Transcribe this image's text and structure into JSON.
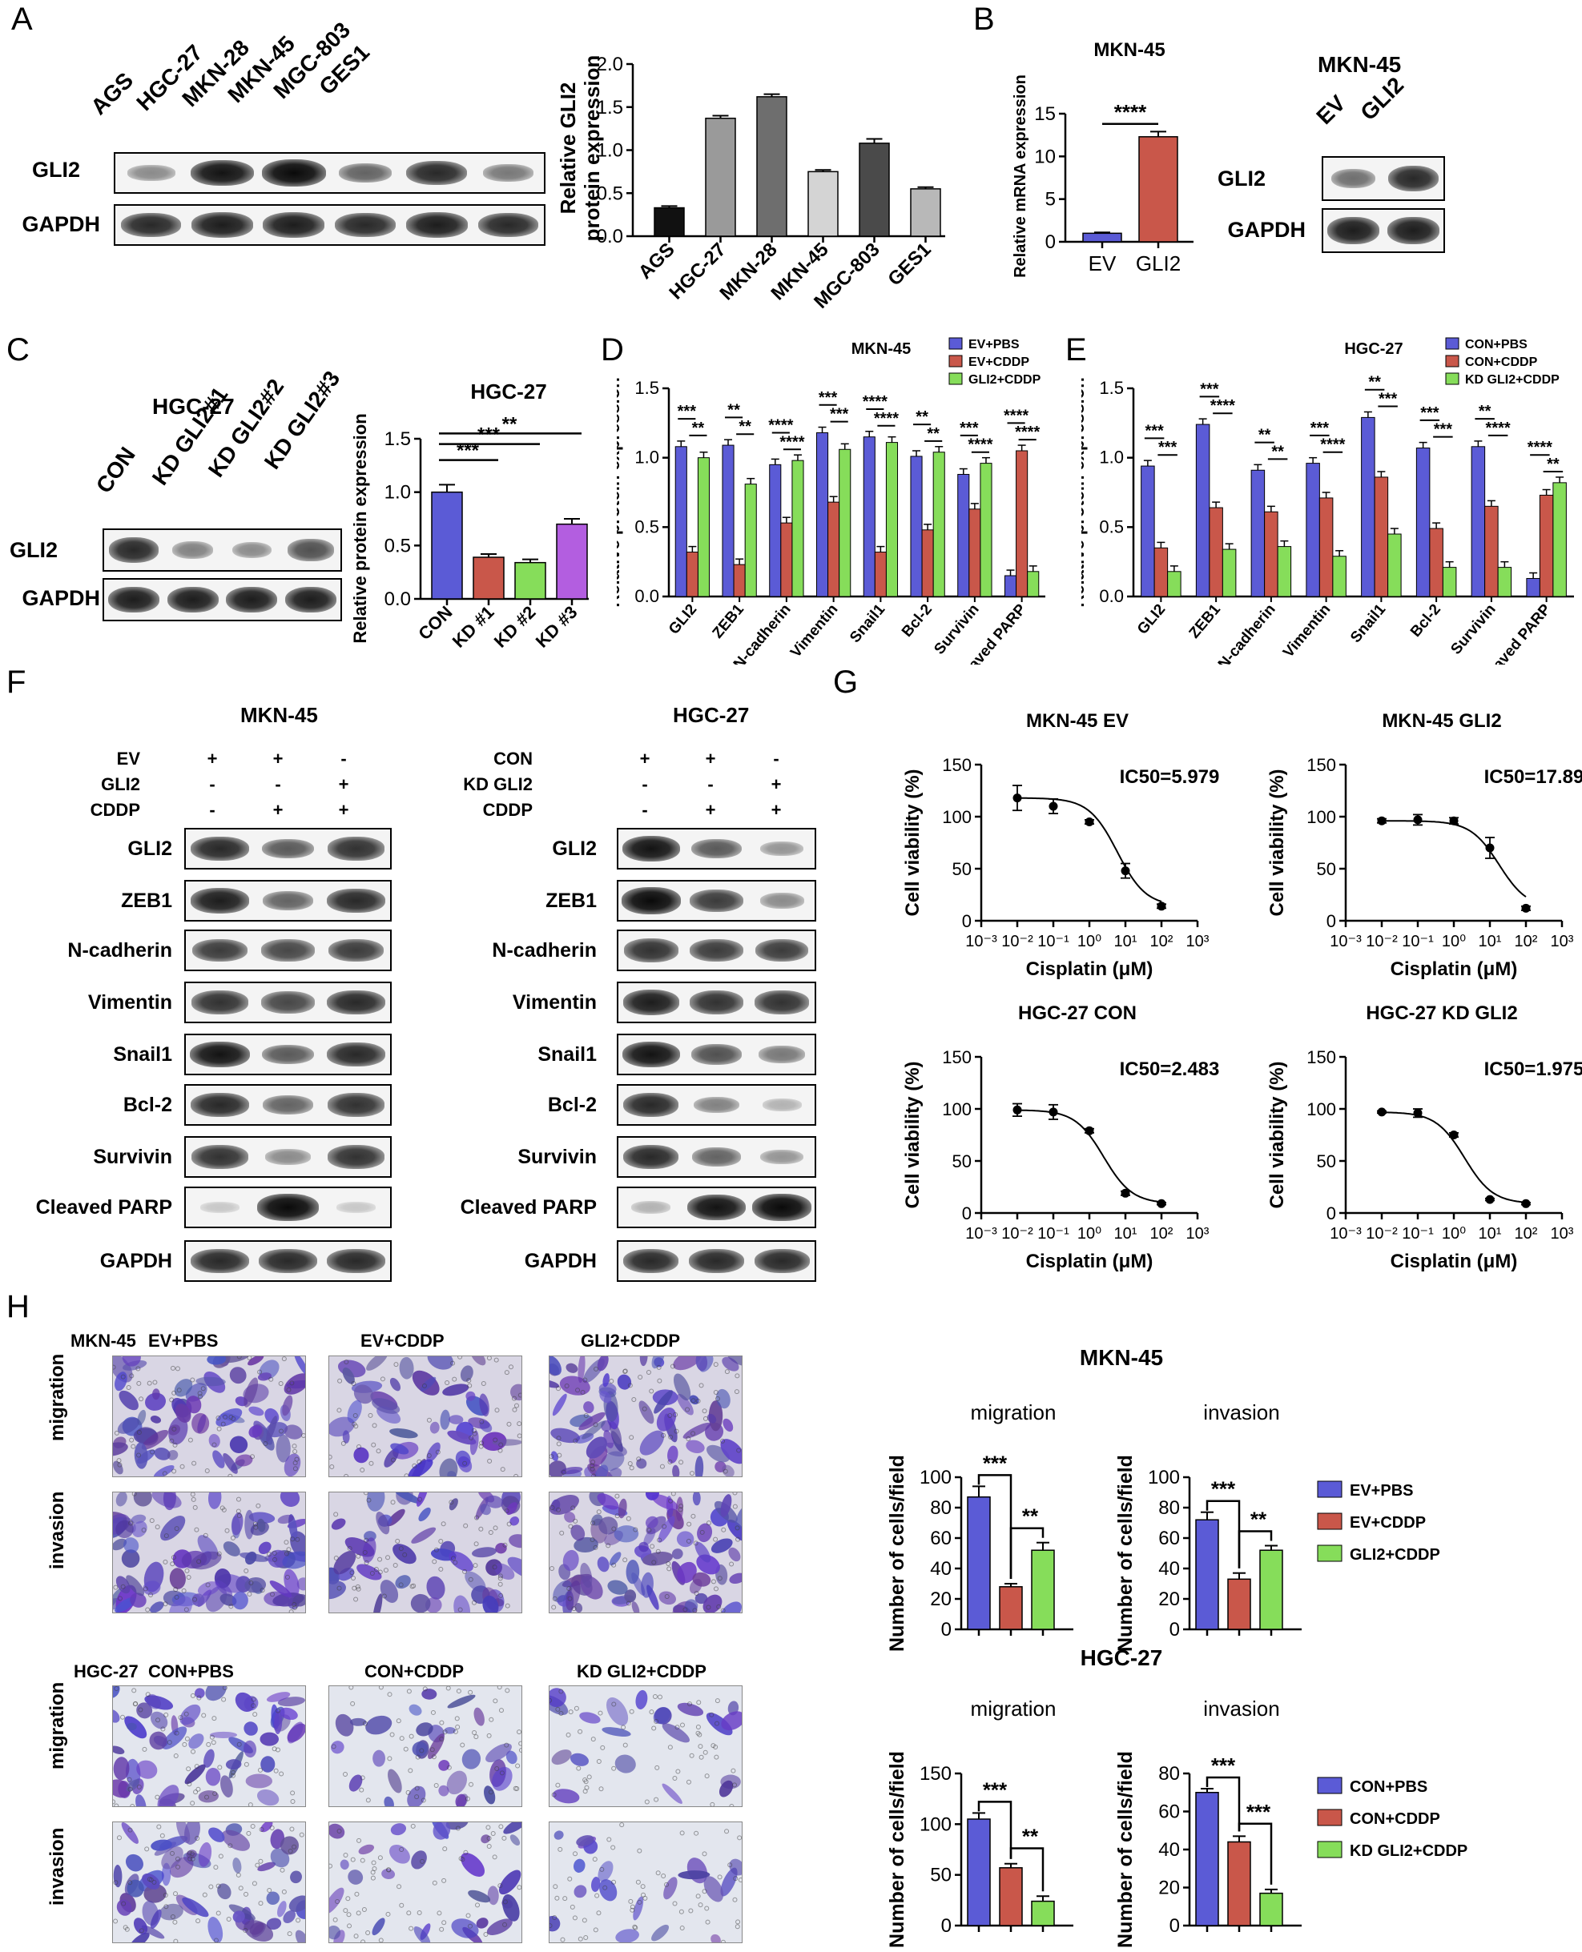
{
  "panels": {
    "A": {
      "letter": "A",
      "lanes": [
        "AGS",
        "HGC-27",
        "MKN-28",
        "MKN-45",
        "MGC-803",
        "GES1"
      ],
      "rows": [
        "GLI2",
        "GAPDH"
      ],
      "chart_data": {
        "type": "bar",
        "categories": [
          "AGS",
          "HGC-27",
          "MKN-28",
          "MKN-45",
          "MGC-803",
          "GES1"
        ],
        "values": [
          0.33,
          1.37,
          1.62,
          0.75,
          1.08,
          0.55
        ],
        "errors": [
          0.02,
          0.03,
          0.03,
          0.02,
          0.05,
          0.02
        ],
        "colors": [
          "#111111",
          "#9a9a9a",
          "#6e6e6e",
          "#d4d4d4",
          "#4a4a4a",
          "#b8b8b8"
        ],
        "ylabel": "Relative GLI2 protein expression",
        "ylabel_lines": [
          "Relative GLI2",
          "protein expression"
        ],
        "ylim": [
          0,
          2.0
        ],
        "yticks": [
          "0.0",
          "0.5",
          "1.0",
          "1.5",
          "2.0"
        ]
      }
    },
    "B": {
      "letter": "B",
      "chart_data": {
        "type": "bar",
        "title": "MKN-45",
        "categories": [
          "EV",
          "GLI2"
        ],
        "values": [
          1.0,
          12.3
        ],
        "errors": [
          0.1,
          0.6
        ],
        "colors": [
          "#5b5bd6",
          "#c9574a"
        ],
        "ylabel": "Relative mRNA expression",
        "ylim": [
          0,
          15
        ],
        "yticks": [
          "0",
          "5",
          "10",
          "15"
        ],
        "significance": "****"
      },
      "blot": {
        "title": "MKN-45",
        "lanes": [
          "EV",
          "GLI2"
        ],
        "rows": [
          "GLI2",
          "GAPDH"
        ]
      }
    },
    "C": {
      "letter": "C",
      "blot": {
        "title": "HGC-27",
        "lanes": [
          "CON",
          "KD GLI2#1",
          "KD GLI2#2",
          "KD GLI2#3"
        ],
        "rows": [
          "GLI2",
          "GAPDH"
        ]
      },
      "chart_data": {
        "type": "bar",
        "title": "HGC-27",
        "categories": [
          "CON",
          "KD #1",
          "KD #2",
          "KD #3"
        ],
        "values": [
          1.0,
          0.39,
          0.34,
          0.7
        ],
        "errors": [
          0.07,
          0.03,
          0.03,
          0.05
        ],
        "colors": [
          "#5b5bd6",
          "#c9574a",
          "#86dd5a",
          "#b35ee0"
        ],
        "ylabel": "Relative protein expression",
        "ylim": [
          0,
          1.5
        ],
        "yticks": [
          "0.0",
          "0.5",
          "1.0",
          "1.5"
        ],
        "significance": [
          "**",
          "***",
          "***"
        ]
      }
    },
    "D": {
      "letter": "D",
      "chart_data": {
        "type": "bar",
        "title": "MKN-45",
        "categories": [
          "GLI2",
          "ZEB1",
          "N-cadherin",
          "Vimentin",
          "Snail1",
          "Bcl-2",
          "Survivin",
          "Cleaved PARP"
        ],
        "series": [
          {
            "name": "EV+PBS",
            "color": "#5b5bd6",
            "values": [
              1.08,
              1.09,
              0.95,
              1.18,
              1.15,
              1.01,
              0.88,
              0.15
            ]
          },
          {
            "name": "EV+CDDP",
            "color": "#c9574a",
            "values": [
              0.32,
              0.23,
              0.53,
              0.68,
              0.32,
              0.48,
              0.63,
              1.05
            ]
          },
          {
            "name": "GLI2+CDDP",
            "color": "#86dd5a",
            "values": [
              1.0,
              0.81,
              0.98,
              1.06,
              1.11,
              1.04,
              0.96,
              0.18
            ]
          }
        ],
        "stars_top": [
          "***",
          "**",
          "****",
          "***",
          "****",
          "**",
          "***",
          "****"
        ],
        "stars_bottom": [
          "**",
          "**",
          "****",
          "***",
          "****",
          "**",
          "****",
          "****"
        ],
        "ylabel": "Relative protein expression",
        "ylim": [
          0,
          1.5
        ],
        "yticks": [
          "0.0",
          "0.5",
          "1.0",
          "1.5"
        ],
        "legend": "top-right"
      }
    },
    "E": {
      "letter": "E",
      "chart_data": {
        "type": "bar",
        "title": "HGC-27",
        "categories": [
          "GLI2",
          "ZEB1",
          "N-cadherin",
          "Vimentin",
          "Snail1",
          "Bcl-2",
          "Survivin",
          "Cleaved PARP"
        ],
        "series": [
          {
            "name": "CON+PBS",
            "color": "#5b5bd6",
            "values": [
              0.94,
              1.24,
              0.91,
              0.96,
              1.29,
              1.07,
              1.08,
              0.13
            ]
          },
          {
            "name": "CON+CDDP",
            "color": "#c9574a",
            "values": [
              0.35,
              0.64,
              0.61,
              0.71,
              0.86,
              0.49,
              0.65,
              0.73
            ]
          },
          {
            "name": "KD GLI2+CDDP",
            "color": "#86dd5a",
            "values": [
              0.18,
              0.34,
              0.36,
              0.29,
              0.45,
              0.21,
              0.21,
              0.82
            ]
          }
        ],
        "stars_top": [
          "***",
          "***",
          "**",
          "***",
          "**",
          "***",
          "**",
          "****"
        ],
        "stars_bottom": [
          "***",
          "****",
          "**",
          "****",
          "***",
          "***",
          "****",
          "**"
        ],
        "ylabel": "Relative protein expression",
        "ylim": [
          0,
          1.5
        ],
        "yticks": [
          "0.0",
          "0.5",
          "1.0",
          "1.5"
        ],
        "legend": "top-right"
      }
    },
    "F": {
      "letter": "F",
      "left": {
        "title": "MKN-45",
        "conditions": [
          {
            "label": "EV",
            "vals": [
              "+",
              "+",
              "-"
            ]
          },
          {
            "label": "GLI2",
            "vals": [
              "-",
              "-",
              "+"
            ]
          },
          {
            "label": "CDDP",
            "vals": [
              "-",
              "+",
              "+"
            ]
          }
        ],
        "rows": [
          "GLI2",
          "ZEB1",
          "N-cadherin",
          "Vimentin",
          "Snail1",
          "Bcl-2",
          "Survivin",
          "Cleaved PARP",
          "GAPDH"
        ]
      },
      "right": {
        "title": "HGC-27",
        "conditions": [
          {
            "label": "CON",
            "vals": [
              "+",
              "+",
              "-"
            ]
          },
          {
            "label": "KD GLI2",
            "vals": [
              "-",
              "-",
              "+"
            ]
          },
          {
            "label": "CDDP",
            "vals": [
              "-",
              "+",
              "+"
            ]
          }
        ],
        "rows": [
          "GLI2",
          "ZEB1",
          "N-cadherin",
          "Vimentin",
          "Snail1",
          "Bcl-2",
          "Survivin",
          "Cleaved PARP",
          "GAPDH"
        ]
      }
    },
    "G": {
      "letter": "G",
      "chart_data": [
        {
          "type": "line",
          "title": "MKN-45 EV",
          "annotation": "IC50=5.979",
          "x": [
            0.01,
            0.1,
            1,
            10,
            100
          ],
          "y": [
            118,
            110,
            95,
            48,
            14
          ],
          "errors": [
            12,
            7,
            2,
            7,
            2
          ],
          "ylabel": "Cell viability (%)",
          "xlabel": "Cisplatin (μM)",
          "ylim": [
            0,
            150
          ],
          "xlim": [
            0.001,
            1000
          ],
          "xscale": "log",
          "ic50": 5.979
        },
        {
          "type": "line",
          "title": "MKN-45 GLI2",
          "annotation": "IC50=17.89",
          "x": [
            0.01,
            0.1,
            1,
            10,
            100
          ],
          "y": [
            96,
            97,
            96,
            70,
            12
          ],
          "errors": [
            2,
            5,
            3,
            10,
            2
          ],
          "ylabel": "Cell viability (%)",
          "xlabel": "Cisplatin (μM)",
          "ylim": [
            0,
            150
          ],
          "xlim": [
            0.001,
            1000
          ],
          "xscale": "log",
          "ic50": 17.89
        },
        {
          "type": "line",
          "title": "HGC-27 CON",
          "annotation": "IC50=2.483",
          "x": [
            0.01,
            0.1,
            1,
            10,
            100
          ],
          "y": [
            99,
            97,
            79,
            19,
            9
          ],
          "errors": [
            6,
            7,
            2,
            2,
            1
          ],
          "ylabel": "Cell viability (%)",
          "xlabel": "Cisplatin (μM)",
          "ylim": [
            0,
            150
          ],
          "xlim": [
            0.001,
            1000
          ],
          "xscale": "log",
          "ic50": 2.483
        },
        {
          "type": "line",
          "title": "HGC-27 KD GLI2",
          "annotation": "IC50=1.975",
          "x": [
            0.01,
            0.1,
            1,
            10,
            100
          ],
          "y": [
            97,
            96,
            75,
            13,
            9
          ],
          "errors": [
            1,
            4,
            2,
            1,
            1
          ],
          "ylabel": "Cell viability (%)",
          "xlabel": "Cisplatin (μM)",
          "ylim": [
            0,
            150
          ],
          "xlim": [
            0.001,
            1000
          ],
          "xscale": "log",
          "ic50": 1.975
        }
      ],
      "xticks": [
        "10⁻³",
        "10⁻²",
        "10⁻¹",
        "10⁰",
        "10¹",
        "10²",
        "10³"
      ],
      "yticks": [
        "0",
        "50",
        "100",
        "150"
      ]
    },
    "H": {
      "letter": "H",
      "mkn": {
        "cell": "MKN-45",
        "groups": [
          "EV+PBS",
          "EV+CDDP",
          "GLI2+CDDP"
        ],
        "rows": [
          "migration",
          "invasion"
        ],
        "title": "MKN-45"
      },
      "hgc": {
        "cell": "HGC-27",
        "groups": [
          "CON+PBS",
          "CON+CDDP",
          "KD GLI2+CDDP"
        ],
        "rows": [
          "migration",
          "invasion"
        ],
        "title": "HGC-27"
      },
      "chart_data": [
        {
          "type": "bar",
          "title": "migration",
          "categories": [
            "EV+PBS",
            "EV+CDDP",
            "GLI2+CDDP"
          ],
          "values": [
            87,
            28,
            52
          ],
          "errors": [
            7,
            2,
            5
          ],
          "colors": [
            "#5b5bd6",
            "#c9574a",
            "#86dd5a"
          ],
          "ylabel": "Number of cells/field",
          "ylim": [
            0,
            100
          ],
          "yticks": [
            "0",
            "20",
            "40",
            "60",
            "80",
            "100"
          ],
          "stars": [
            "***",
            "**"
          ]
        },
        {
          "type": "bar",
          "title": "invasion",
          "categories": [
            "EV+PBS",
            "EV+CDDP",
            "GLI2+CDDP"
          ],
          "values": [
            72,
            33,
            52
          ],
          "errors": [
            5,
            4,
            3
          ],
          "colors": [
            "#5b5bd6",
            "#c9574a",
            "#86dd5a"
          ],
          "ylabel": "Number of cells/field",
          "ylim": [
            0,
            100
          ],
          "yticks": [
            "0",
            "20",
            "40",
            "60",
            "80",
            "100"
          ],
          "stars": [
            "***",
            "**"
          ]
        },
        {
          "type": "bar",
          "title": "migration",
          "categories": [
            "CON+PBS",
            "CON+CDDP",
            "KD GLI2+CDDP"
          ],
          "values": [
            105,
            57,
            24
          ],
          "errors": [
            6,
            4,
            5
          ],
          "colors": [
            "#5b5bd6",
            "#c9574a",
            "#86dd5a"
          ],
          "ylabel": "Number of cells/field",
          "ylim": [
            0,
            150
          ],
          "yticks": [
            "0",
            "50",
            "100",
            "150"
          ],
          "stars": [
            "***",
            "**"
          ]
        },
        {
          "type": "bar",
          "title": "invasion",
          "categories": [
            "CON+PBS",
            "CON+CDDP",
            "KD GLI2+CDDP"
          ],
          "values": [
            70,
            44,
            17
          ],
          "errors": [
            2,
            3,
            2
          ],
          "colors": [
            "#5b5bd6",
            "#c9574a",
            "#86dd5a"
          ],
          "ylabel": "Number of cells/field",
          "ylim": [
            0,
            80
          ],
          "yticks": [
            "0",
            "20",
            "40",
            "60",
            "80"
          ],
          "stars": [
            "***",
            "***"
          ]
        }
      ],
      "legend_mkn": [
        "EV+PBS",
        "EV+CDDP",
        "GLI2+CDDP"
      ],
      "legend_hgc": [
        "CON+PBS",
        "CON+CDDP",
        "KD GLI2+CDDP"
      ],
      "colors": [
        "#5b5bd6",
        "#c9574a",
        "#86dd5a"
      ]
    }
  }
}
